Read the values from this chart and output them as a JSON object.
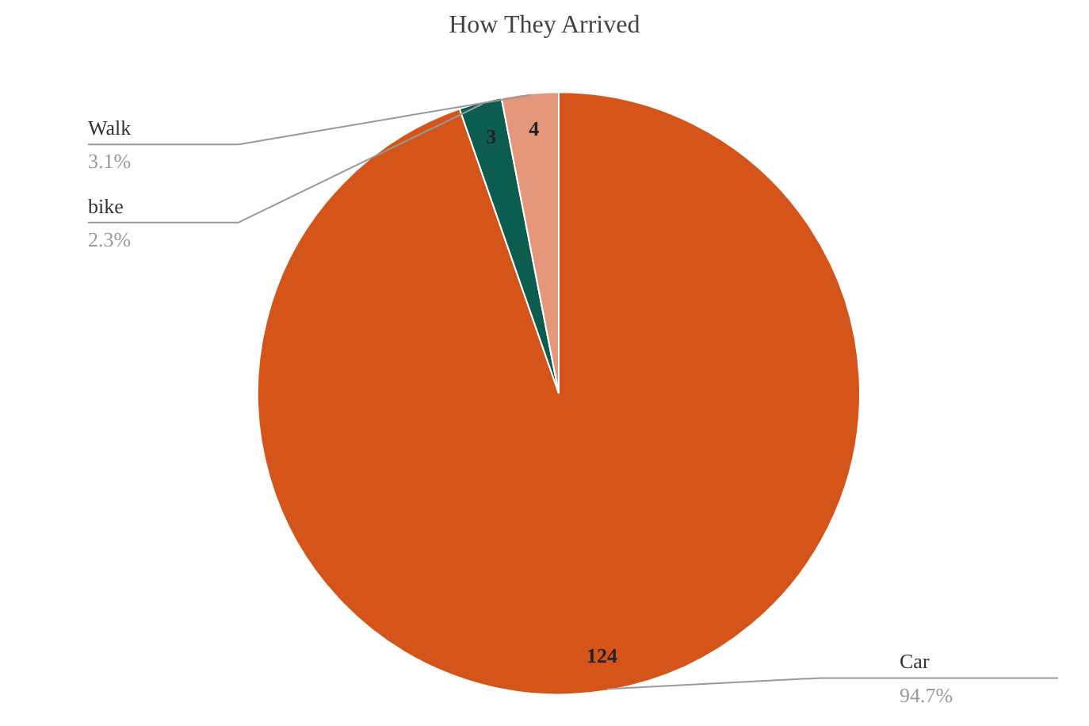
{
  "chart_data": {
    "type": "pie",
    "title": "How They Arrived",
    "categories": [
      "Car",
      "bike",
      "Walk"
    ],
    "values": [
      124,
      3,
      4
    ],
    "colors": [
      "#d4541a",
      "#0d5c50",
      "#e5977c"
    ],
    "data_labels": true,
    "annotations": [
      "94.7%",
      "2.3%",
      "3.1%"
    ]
  }
}
